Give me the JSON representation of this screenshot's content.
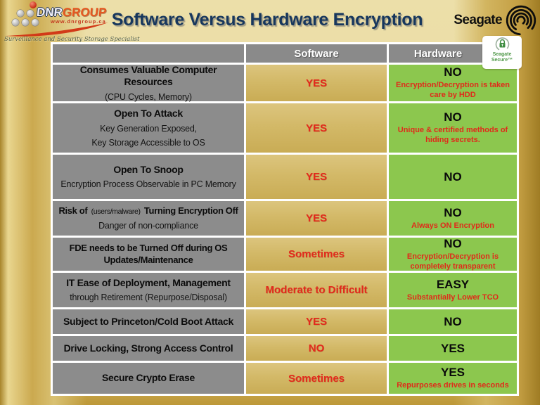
{
  "header": {
    "dnr_logo": {
      "name_part1": "DNR",
      "name_part2": "GROUP",
      "url": "www.dnrgroup.ca",
      "tagline": "Surveillance and Security Storage Specialist"
    },
    "title": "Software Versus Hardware Encryption",
    "seagate_wordmark": "Seagate",
    "secure_badge": {
      "line1": "Seagate",
      "line2": "Secure™"
    }
  },
  "table": {
    "columns": {
      "software": "Software",
      "hardware": "Hardware"
    },
    "rows": [
      {
        "feature": {
          "title": "Consumes Valuable Computer Resources",
          "subs": [
            "(CPU Cycles, Memory)"
          ]
        },
        "software": "YES",
        "hardware": "NO",
        "hardware_note": "Encryption/Decryption is taken care by HDD"
      },
      {
        "feature": {
          "title": "Open To Attack",
          "subs": [
            "Key Generation Exposed,",
            "Key Storage Accessible to OS"
          ]
        },
        "software": "YES",
        "hardware": "NO",
        "hardware_note": "Unique & certified methods of hiding secrets."
      },
      {
        "feature": {
          "title": "Open To Snoop",
          "subs": [
            "Encryption Process Observable in PC Memory"
          ]
        },
        "software": "YES",
        "hardware": "NO",
        "hardware_note": ""
      },
      {
        "feature": {
          "title": "Risk of",
          "title_small": "(users/malware)",
          "title_end": "Turning Encryption Off",
          "subs": [
            "Danger of non-compliance"
          ]
        },
        "software": "YES",
        "hardware": "NO",
        "hardware_note": "Always ON Encryption"
      },
      {
        "feature": {
          "title": "FDE needs to be Turned Off during OS Updates/Maintenance",
          "subs": []
        },
        "software": "Sometimes",
        "hardware": "NO",
        "hardware_note": "Encryption/Decryption is completely transparent"
      },
      {
        "feature": {
          "title": "IT Ease of Deployment, Management",
          "subs": [
            "through Retirement (Repurpose/Disposal)"
          ]
        },
        "software": "Moderate to Difficult",
        "hardware": "EASY",
        "hardware_note": "Substantially Lower TCO"
      },
      {
        "feature": {
          "title": "Subject to Princeton/Cold Boot Attack",
          "subs": []
        },
        "software": "YES",
        "hardware": "NO",
        "hardware_note": ""
      },
      {
        "feature": {
          "title": "Drive Locking, Strong Access Control",
          "subs": []
        },
        "software": "NO",
        "hardware": "YES",
        "hardware_note": ""
      },
      {
        "feature": {
          "title": "Secure Crypto Erase",
          "subs": []
        },
        "software": "Sometimes",
        "hardware": "YES",
        "hardware_note": "Repurposes drives in seconds"
      }
    ]
  },
  "colors": {
    "title_navy": "#17375D",
    "cell_gray": "#8C8C8C",
    "cell_gold": "#D3B968",
    "cell_green": "#8CC74E",
    "text_red": "#E32A1C",
    "badge_green": "#4E9747",
    "background_gold": "#CBA94F"
  }
}
